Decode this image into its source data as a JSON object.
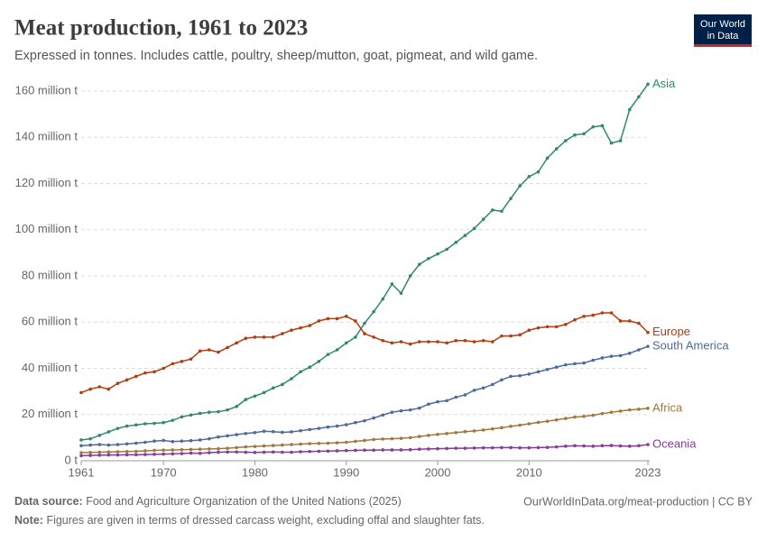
{
  "chart_data": {
    "type": "line",
    "title": "Meat production, 1961 to 2023",
    "subtitle": "Expressed in tonnes. Includes cattle, poultry, sheep/mutton, goat, pigmeat, and wild game.",
    "logo": [
      "Our World",
      "in Data"
    ],
    "source_label": "Data source:",
    "source": "Food and Agriculture Organization of the United Nations (2025)",
    "url": "OurWorldInData.org/meat-production | CC BY",
    "note_label": "Note:",
    "note": "Figures are given in terms of dressed carcass weight, excluding offal and slaughter fats.",
    "x": [
      1961,
      1962,
      1963,
      1964,
      1965,
      1966,
      1967,
      1968,
      1969,
      1970,
      1971,
      1972,
      1973,
      1974,
      1975,
      1976,
      1977,
      1978,
      1979,
      1980,
      1981,
      1982,
      1983,
      1984,
      1985,
      1986,
      1987,
      1988,
      1989,
      1990,
      1991,
      1992,
      1993,
      1994,
      1995,
      1996,
      1997,
      1998,
      1999,
      2000,
      2001,
      2002,
      2003,
      2004,
      2005,
      2006,
      2007,
      2008,
      2009,
      2010,
      2011,
      2012,
      2013,
      2014,
      2015,
      2016,
      2017,
      2018,
      2019,
      2020,
      2021,
      2022,
      2023
    ],
    "xlim": [
      1961,
      2023
    ],
    "xticks": [
      1961,
      1970,
      1980,
      1990,
      2000,
      2010,
      2023
    ],
    "ylim": [
      0,
      160
    ],
    "yticks": [
      {
        "value": 0,
        "label": "0 t"
      },
      {
        "value": 20,
        "label": "20 million t"
      },
      {
        "value": 40,
        "label": "40 million t"
      },
      {
        "value": 60,
        "label": "60 million t"
      },
      {
        "value": 80,
        "label": "80 million t"
      },
      {
        "value": 100,
        "label": "100 million t"
      },
      {
        "value": 120,
        "label": "120 million t"
      },
      {
        "value": 140,
        "label": "140 million t"
      },
      {
        "value": 160,
        "label": "160 million t"
      }
    ],
    "grid": true,
    "series": [
      {
        "name": "Asia",
        "color": "#2e8a67",
        "values": [
          9,
          9.5,
          11,
          12.5,
          14,
          15,
          15.5,
          16,
          16.2,
          16.5,
          17.5,
          19,
          19.8,
          20.5,
          21,
          21.2,
          22,
          23.5,
          26.5,
          28,
          29.5,
          31.5,
          33,
          35.5,
          38.5,
          40.5,
          43,
          46,
          48,
          51,
          53.5,
          59.5,
          64.5,
          70,
          76.5,
          72.5,
          80,
          85,
          87.5,
          89.5,
          91.5,
          94.5,
          97.5,
          100.5,
          104.5,
          108.5,
          108,
          113.5,
          119,
          123,
          125,
          131,
          135,
          138.5,
          141,
          141.5,
          144.5,
          145,
          137.5,
          138.5,
          152,
          157.5,
          163
        ]
      },
      {
        "name": "Europe",
        "color": "#b13c0e",
        "values": [
          29.5,
          31,
          32,
          31,
          33.5,
          35,
          36.5,
          38,
          38.5,
          40,
          42,
          43,
          44,
          47.5,
          48,
          47,
          49,
          51,
          53,
          53.5,
          53.5,
          53.5,
          55,
          56.5,
          57.5,
          58.5,
          60.5,
          61.5,
          61.5,
          62.5,
          60.5,
          55,
          53.5,
          52,
          51,
          51.5,
          50.5,
          51.5,
          51.5,
          51.5,
          51,
          52,
          52,
          51.5,
          52,
          51.5,
          54,
          54,
          54.5,
          56.5,
          57.5,
          58,
          58,
          59,
          61,
          62.5,
          63,
          64,
          64,
          60.5,
          60.5,
          59.5,
          55.5
        ]
      },
      {
        "name": "South America",
        "color": "#4c6a9c",
        "values": [
          6.5,
          6.8,
          7,
          6.8,
          7,
          7.3,
          7.6,
          8,
          8.5,
          8.8,
          8.3,
          8.5,
          8.7,
          9,
          9.5,
          10.3,
          10.8,
          11.3,
          11.8,
          12.2,
          12.8,
          12.6,
          12.3,
          12.5,
          13,
          13.5,
          14,
          14.6,
          15,
          15.6,
          16.5,
          17.3,
          18.5,
          19.8,
          21,
          21.6,
          22,
          22.8,
          24.5,
          25.5,
          26,
          27.5,
          28.5,
          30.5,
          31.5,
          33,
          35,
          36.5,
          36.8,
          37.5,
          38.5,
          39.5,
          40.5,
          41.5,
          42,
          42.3,
          43.5,
          44.5,
          45.2,
          45.5,
          46.5,
          48,
          49.5
        ]
      },
      {
        "name": "Africa",
        "color": "#a2773c",
        "values": [
          3.5,
          3.6,
          3.7,
          3.8,
          3.9,
          4.0,
          4.1,
          4.3,
          4.5,
          4.6,
          4.7,
          4.8,
          4.9,
          5.0,
          5.1,
          5.2,
          5.4,
          5.7,
          6.0,
          6.2,
          6.4,
          6.6,
          6.8,
          7.0,
          7.2,
          7.4,
          7.5,
          7.6,
          7.8,
          8.0,
          8.4,
          8.8,
          9.2,
          9.4,
          9.5,
          9.7,
          10.0,
          10.5,
          11.0,
          11.4,
          11.8,
          12.2,
          12.6,
          12.9,
          13.3,
          13.8,
          14.3,
          14.9,
          15.4,
          16.0,
          16.6,
          17.1,
          17.7,
          18.3,
          18.9,
          19.2,
          19.7,
          20.4,
          21.0,
          21.5,
          22.0,
          22.3,
          22.7
        ]
      },
      {
        "name": "Oceania",
        "color": "#883a99",
        "values": [
          2.2,
          2.3,
          2.4,
          2.5,
          2.5,
          2.6,
          2.6,
          2.7,
          2.8,
          2.9,
          3.0,
          3.1,
          3.3,
          3.2,
          3.5,
          3.7,
          3.8,
          3.8,
          3.7,
          3.6,
          3.7,
          3.8,
          3.7,
          3.7,
          3.9,
          4.0,
          4.1,
          4.2,
          4.3,
          4.4,
          4.5,
          4.6,
          4.6,
          4.7,
          4.7,
          4.7,
          4.8,
          5.0,
          5.1,
          5.2,
          5.3,
          5.4,
          5.4,
          5.5,
          5.6,
          5.6,
          5.7,
          5.7,
          5.6,
          5.6,
          5.7,
          5.8,
          6.0,
          6.3,
          6.5,
          6.4,
          6.3,
          6.5,
          6.6,
          6.4,
          6.3,
          6.5,
          7.0
        ]
      }
    ]
  }
}
